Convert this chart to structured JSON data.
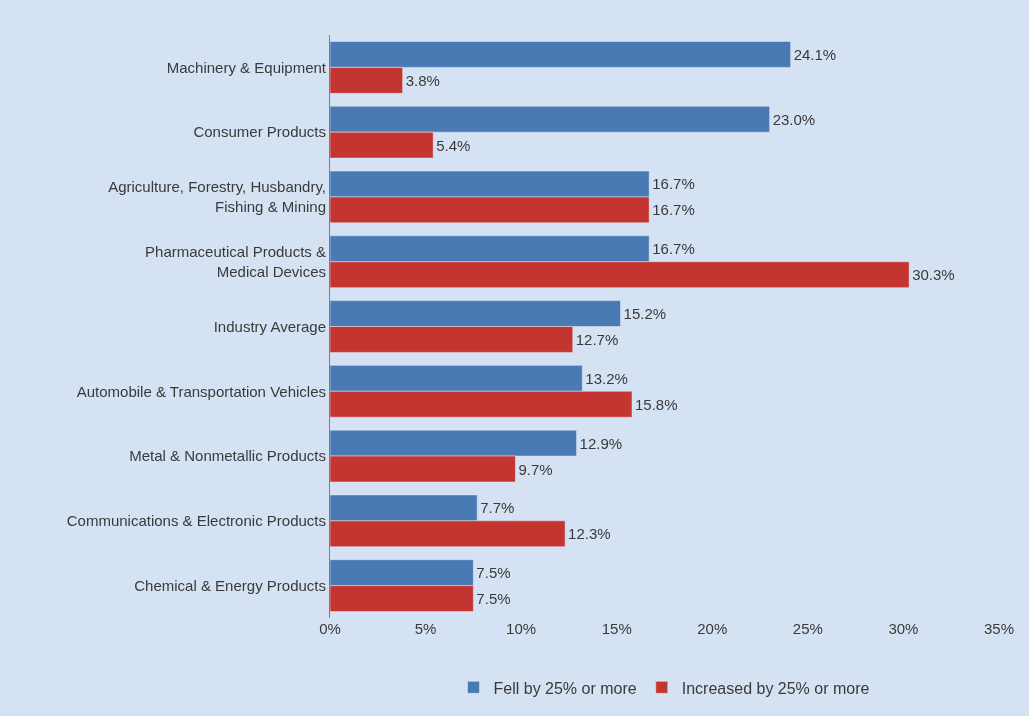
{
  "chart_data": {
    "type": "bar",
    "orientation": "horizontal",
    "categories": [
      "Machinery & Equipment",
      "Consumer Products",
      "Agriculture, Forestry, Husbandry,\nFishing & Mining",
      "Pharmaceutical Products &\nMedical Devices",
      "Industry Average",
      "Automobile & Transportation Vehicles",
      "Metal & Nonmetallic Products",
      "Communications & Electronic Products",
      "Chemical & Energy Products"
    ],
    "series": [
      {
        "name": "Fell by 25% or more",
        "color": "#4a7ab4",
        "values": [
          24.1,
          23.0,
          16.7,
          16.7,
          15.2,
          13.2,
          12.9,
          7.7,
          7.5
        ],
        "value_labels": [
          "24.1%",
          "23.0%",
          "16.7%",
          "16.7%",
          "15.2%",
          "13.2%",
          "12.9%",
          "7.7%",
          "7.5%"
        ]
      },
      {
        "name": "Increased by 25% or more",
        "color": "#c43532",
        "values": [
          3.8,
          5.4,
          16.7,
          30.3,
          12.7,
          15.8,
          9.7,
          12.3,
          7.5
        ],
        "value_labels": [
          "3.8%",
          "5.4%",
          "16.7%",
          "30.3%",
          "12.7%",
          "15.8%",
          "9.7%",
          "12.3%",
          "7.5%"
        ]
      }
    ],
    "xlim": [
      0,
      35
    ],
    "xticks": [
      {
        "value": 0,
        "label": "0%"
      },
      {
        "value": 5,
        "label": "5%"
      },
      {
        "value": 10,
        "label": "10%"
      },
      {
        "value": 15,
        "label": "15%"
      },
      {
        "value": 20,
        "label": "20%"
      },
      {
        "value": 25,
        "label": "25%"
      },
      {
        "value": 30,
        "label": "30%"
      },
      {
        "value": 35,
        "label": "35%"
      }
    ],
    "grid": false,
    "legend": "bottom"
  }
}
